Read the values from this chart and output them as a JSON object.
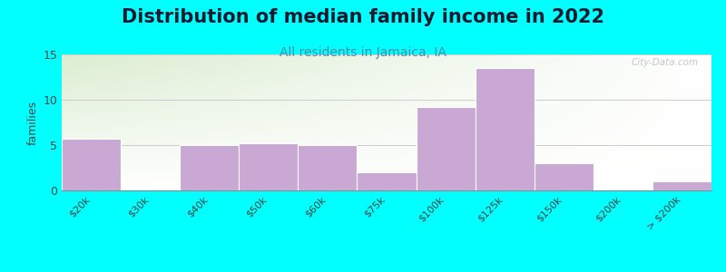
{
  "title": "Distribution of median family income in 2022",
  "subtitle": "All residents in Jamaica, IA",
  "categories": [
    "$20k",
    "$30k",
    "$40k",
    "$50k",
    "$60k",
    "$75k",
    "$100k",
    "$125k",
    "$150k",
    "$200k",
    "> $200k"
  ],
  "values": [
    5.7,
    0,
    5,
    5.2,
    5,
    2,
    9.2,
    13.5,
    3,
    0,
    1
  ],
  "bar_color": "#c9a8d4",
  "bar_edgecolor": "#ffffff",
  "background_outer": "#00ffff",
  "ylabel": "families",
  "ylim": [
    0,
    15
  ],
  "yticks": [
    0,
    5,
    10,
    15
  ],
  "title_fontsize": 15,
  "subtitle_fontsize": 10,
  "watermark": "City-Data.com",
  "grad_topleft": [
    0.86,
    0.93,
    0.82
  ],
  "grad_bottomright": [
    1.0,
    1.0,
    1.0
  ]
}
